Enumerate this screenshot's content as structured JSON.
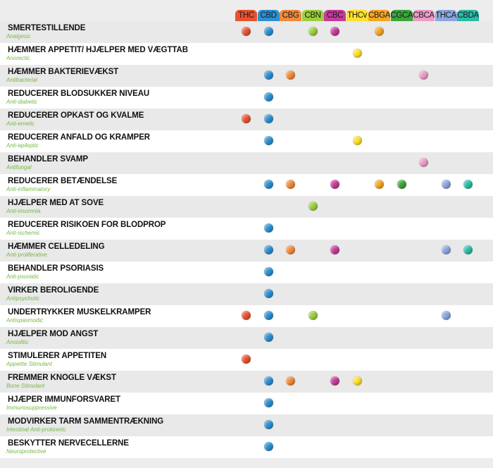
{
  "compounds": [
    {
      "label": "THC",
      "color": "#e8522f"
    },
    {
      "label": "CBD",
      "color": "#2d8fd2"
    },
    {
      "label": "CBG",
      "color": "#f08a3c"
    },
    {
      "label": "CBN",
      "color": "#9cce3c"
    },
    {
      "label": "CBC",
      "color": "#c63a9a"
    },
    {
      "label": "THCv",
      "color": "#ffe02a"
    },
    {
      "label": "CBGA",
      "color": "#f5a623"
    },
    {
      "label": "CGCA",
      "color": "#3aa63a"
    },
    {
      "label": "CBCA",
      "color": "#ec9bc8"
    },
    {
      "label": "THCA",
      "color": "#8aa7df"
    },
    {
      "label": "CBDA",
      "color": "#2bbca8"
    }
  ],
  "rows": [
    {
      "title": "SMERTESTILLENDE",
      "subtitle": "Analgesic",
      "dots": [
        0,
        1,
        3,
        4,
        6
      ]
    },
    {
      "title": "HÆMMER APPETIT/ HJÆLPER MED VÆGTTAB",
      "subtitle": "Anorectic",
      "dots": [
        5
      ]
    },
    {
      "title": "HÆMMER BAKTERIEVÆKST",
      "subtitle": "Antibacterial",
      "dots": [
        1,
        2,
        8
      ]
    },
    {
      "title": "REDUCERER BLODSUKKER NIVEAU",
      "subtitle": "Anti-diabetic",
      "dots": [
        1
      ]
    },
    {
      "title": "REDUCERER OPKAST OG KVALME",
      "subtitle": "Anti-emetic",
      "dots": [
        0,
        1
      ]
    },
    {
      "title": "REDUCERER ANFALD OG KRAMPER",
      "subtitle": "Anti-epileptic",
      "dots": [
        1,
        5
      ]
    },
    {
      "title": "BEHANDLER SVAMP",
      "subtitle": "Antifungal",
      "dots": [
        8
      ]
    },
    {
      "title": "REDUCERER BETÆNDELSE",
      "subtitle": "Anti-inflammatory",
      "dots": [
        1,
        2,
        4,
        6,
        7,
        9,
        10
      ]
    },
    {
      "title": "HJÆLPER MED AT SOVE",
      "subtitle": "Anti-insomnia",
      "dots": [
        3
      ]
    },
    {
      "title": "REDUCERER RISIKOEN FOR BLODPROP",
      "subtitle": "Anti-ischemic",
      "dots": [
        1
      ]
    },
    {
      "title": "HÆMMER CELLEDELING",
      "subtitle": "Anti-proliferative",
      "dots": [
        1,
        2,
        4,
        9,
        10
      ]
    },
    {
      "title": "BEHANDLER PSORIASIS",
      "subtitle": "Anti-psoriatic",
      "dots": [
        1
      ]
    },
    {
      "title": "VIRKER BEROLIGENDE",
      "subtitle": "Antipsychotic",
      "dots": [
        1
      ]
    },
    {
      "title": "UNDERTRYKKER MUSKELKRAMPER",
      "subtitle": "Antispasmodic",
      "dots": [
        0,
        1,
        3,
        9
      ]
    },
    {
      "title": "HJÆLPER MOD ANGST",
      "subtitle": "Anxiolitic",
      "dots": [
        1
      ]
    },
    {
      "title": "STIMULERER APPETITEN",
      "subtitle": "Appetite Stimulant",
      "dots": [
        0
      ]
    },
    {
      "title": "FREMMER KNOGLE VÆKST",
      "subtitle": "Bone Stimulant",
      "dots": [
        1,
        2,
        4,
        5
      ]
    },
    {
      "title": "HJÆPER IMMUNFORSVARET",
      "subtitle": "Immunosuppressive",
      "dots": [
        1
      ]
    },
    {
      "title": "MODVIRKER TARM SAMMENTRÆKNING",
      "subtitle": "Intestinal Anti-prokinetic",
      "dots": [
        1
      ]
    },
    {
      "title": "BESKYTTER NERVECELLERNE",
      "subtitle": "Neuroprotective",
      "dots": [
        1
      ]
    }
  ]
}
